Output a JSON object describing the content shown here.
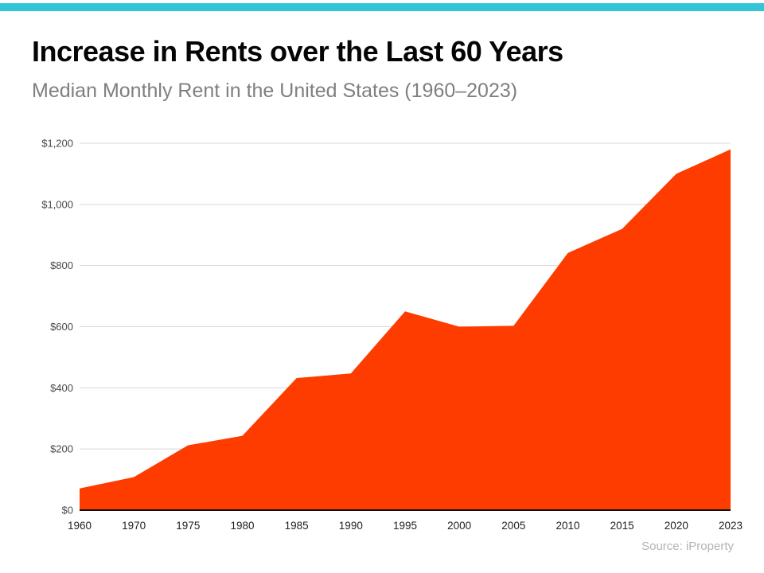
{
  "header": {
    "title": "Increase in Rents over the Last 60 Years",
    "subtitle": "Median Monthly Rent in the United States (1960–2023)"
  },
  "footer": {
    "source": "Source: iProperty"
  },
  "colors": {
    "accent_bar": "#35c5d8",
    "area": "#ff3c00",
    "gridline": "#d8d8d8",
    "axis_line": "#111111"
  },
  "chart_data": {
    "type": "area",
    "title": "Increase in Rents over the Last 60 Years",
    "subtitle": "Median Monthly Rent in the United States (1960–2023)",
    "categories": [
      "1960",
      "1970",
      "1975",
      "1980",
      "1985",
      "1990",
      "1995",
      "2000",
      "2005",
      "2010",
      "2015",
      "2020",
      "2023"
    ],
    "values": [
      71,
      108,
      212,
      243,
      432,
      447,
      650,
      600,
      603,
      841,
      920,
      1100,
      1180
    ],
    "xlabel": "",
    "ylabel": "",
    "ylim": [
      0,
      1200
    ],
    "ytick_step": 200,
    "ytick_prefix": "$",
    "grid": "horizontal",
    "legend": "none"
  }
}
